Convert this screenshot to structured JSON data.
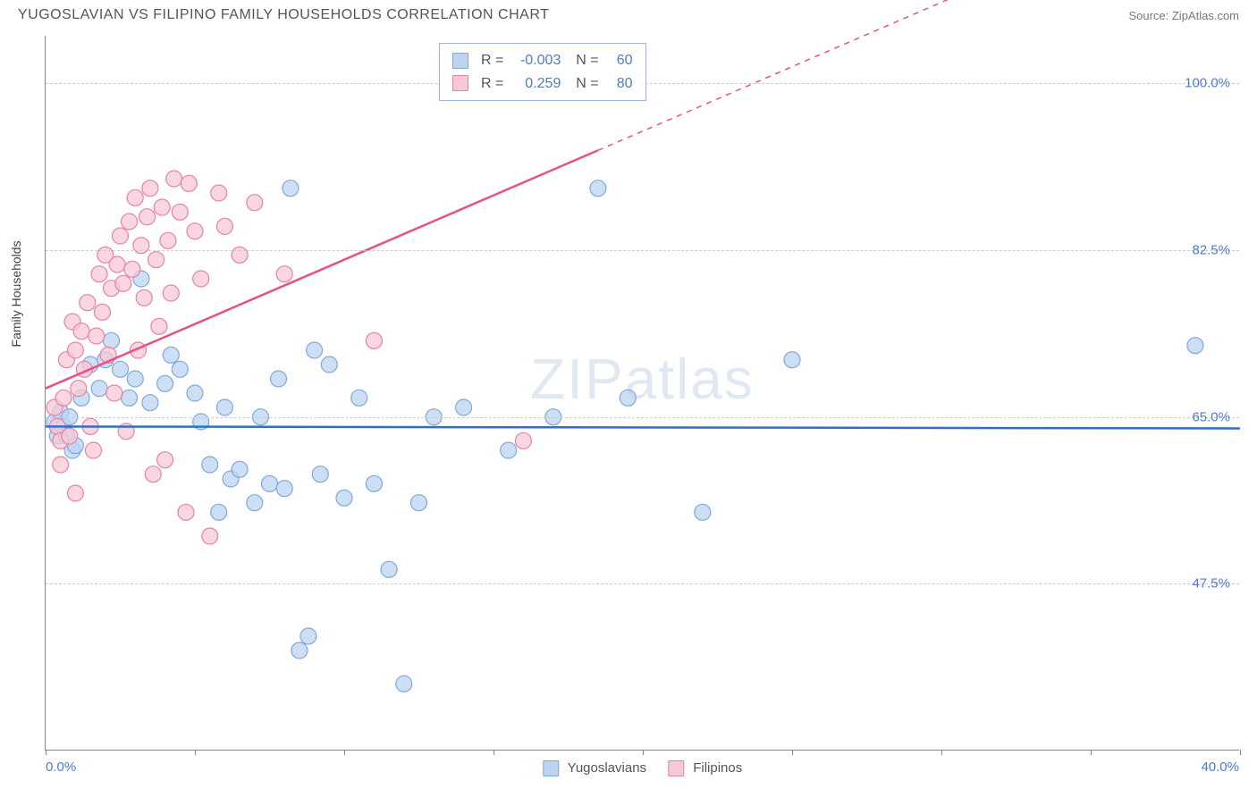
{
  "title": "YUGOSLAVIAN VS FILIPINO FAMILY HOUSEHOLDS CORRELATION CHART",
  "source": "Source: ZipAtlas.com",
  "watermark": "ZIPatlas",
  "y_axis_title": "Family Households",
  "chart": {
    "type": "scatter",
    "xlim": [
      0,
      40
    ],
    "ylim": [
      30,
      105
    ],
    "x_tick_step": 5,
    "x_labels": {
      "min": "0.0%",
      "max": "40.0%"
    },
    "y_ticks": [
      {
        "value": 47.5,
        "label": "47.5%"
      },
      {
        "value": 65.0,
        "label": "65.0%"
      },
      {
        "value": 82.5,
        "label": "82.5%"
      },
      {
        "value": 100.0,
        "label": "100.0%"
      }
    ],
    "background_color": "#ffffff",
    "grid_color": "#cccccc",
    "axis_color": "#888888",
    "series": [
      {
        "name": "Yugoslavians",
        "marker_color": "#bcd4f0",
        "marker_border": "#7ea8db",
        "marker_opacity": 0.75,
        "marker_radius": 9,
        "trend": {
          "slope": -0.005,
          "intercept": 64.0,
          "color": "#2f6dd0",
          "width": 2.5,
          "dash_after_x": 40
        },
        "R": "-0.003",
        "N": "60",
        "points": [
          [
            0.3,
            64.5
          ],
          [
            0.4,
            63.0
          ],
          [
            0.5,
            65.5
          ],
          [
            0.6,
            64.0
          ],
          [
            0.7,
            63.0
          ],
          [
            0.8,
            65.0
          ],
          [
            0.9,
            61.5
          ],
          [
            1.0,
            62.0
          ],
          [
            1.2,
            67.0
          ],
          [
            1.5,
            70.5
          ],
          [
            1.8,
            68.0
          ],
          [
            2.0,
            71.0
          ],
          [
            2.2,
            73.0
          ],
          [
            2.5,
            70.0
          ],
          [
            2.8,
            67.0
          ],
          [
            3.0,
            69.0
          ],
          [
            3.2,
            79.5
          ],
          [
            3.5,
            66.5
          ],
          [
            4.0,
            68.5
          ],
          [
            4.2,
            71.5
          ],
          [
            4.5,
            70.0
          ],
          [
            5.0,
            67.5
          ],
          [
            5.2,
            64.5
          ],
          [
            5.5,
            60.0
          ],
          [
            5.8,
            55.0
          ],
          [
            6.0,
            66.0
          ],
          [
            6.2,
            58.5
          ],
          [
            6.5,
            59.5
          ],
          [
            7.0,
            56.0
          ],
          [
            7.2,
            65.0
          ],
          [
            7.5,
            58.0
          ],
          [
            7.8,
            69.0
          ],
          [
            8.0,
            57.5
          ],
          [
            8.2,
            89.0
          ],
          [
            8.5,
            40.5
          ],
          [
            8.8,
            42.0
          ],
          [
            9.0,
            72.0
          ],
          [
            9.2,
            59.0
          ],
          [
            9.5,
            70.5
          ],
          [
            10.0,
            56.5
          ],
          [
            10.5,
            67.0
          ],
          [
            11.0,
            58.0
          ],
          [
            11.5,
            49.0
          ],
          [
            12.0,
            37.0
          ],
          [
            12.5,
            56.0
          ],
          [
            13.0,
            65.0
          ],
          [
            14.0,
            66.0
          ],
          [
            15.5,
            61.5
          ],
          [
            17.0,
            65.0
          ],
          [
            18.5,
            89.0
          ],
          [
            19.5,
            67.0
          ],
          [
            22.0,
            55.0
          ],
          [
            25.0,
            71.0
          ],
          [
            38.5,
            72.5
          ]
        ]
      },
      {
        "name": "Filipinos",
        "marker_color": "#f7c8d6",
        "marker_border": "#e682a5",
        "marker_opacity": 0.75,
        "marker_radius": 9,
        "trend": {
          "slope": 1.35,
          "intercept": 68.0,
          "color": "#e65189",
          "width": 2.5,
          "dash_after_x": 18.5
        },
        "R": "0.259",
        "N": "80",
        "points": [
          [
            0.3,
            66.0
          ],
          [
            0.4,
            64.0
          ],
          [
            0.5,
            62.5
          ],
          [
            0.6,
            67.0
          ],
          [
            0.7,
            71.0
          ],
          [
            0.8,
            63.0
          ],
          [
            0.9,
            75.0
          ],
          [
            1.0,
            72.0
          ],
          [
            1.1,
            68.0
          ],
          [
            1.2,
            74.0
          ],
          [
            1.3,
            70.0
          ],
          [
            1.4,
            77.0
          ],
          [
            1.5,
            64.0
          ],
          [
            1.6,
            61.5
          ],
          [
            1.7,
            73.5
          ],
          [
            1.8,
            80.0
          ],
          [
            1.9,
            76.0
          ],
          [
            2.0,
            82.0
          ],
          [
            2.1,
            71.5
          ],
          [
            2.2,
            78.5
          ],
          [
            2.3,
            67.5
          ],
          [
            2.4,
            81.0
          ],
          [
            2.5,
            84.0
          ],
          [
            2.6,
            79.0
          ],
          [
            2.7,
            63.5
          ],
          [
            2.8,
            85.5
          ],
          [
            2.9,
            80.5
          ],
          [
            3.0,
            88.0
          ],
          [
            3.1,
            72.0
          ],
          [
            3.2,
            83.0
          ],
          [
            3.3,
            77.5
          ],
          [
            3.4,
            86.0
          ],
          [
            3.5,
            89.0
          ],
          [
            3.6,
            59.0
          ],
          [
            3.7,
            81.5
          ],
          [
            3.8,
            74.5
          ],
          [
            3.9,
            87.0
          ],
          [
            4.0,
            60.5
          ],
          [
            4.1,
            83.5
          ],
          [
            4.2,
            78.0
          ],
          [
            4.3,
            90.0
          ],
          [
            4.5,
            86.5
          ],
          [
            4.7,
            55.0
          ],
          [
            4.8,
            89.5
          ],
          [
            5.0,
            84.5
          ],
          [
            5.2,
            79.5
          ],
          [
            5.5,
            52.5
          ],
          [
            5.8,
            88.5
          ],
          [
            6.0,
            85.0
          ],
          [
            6.5,
            82.0
          ],
          [
            7.0,
            87.5
          ],
          [
            8.0,
            80.0
          ],
          [
            11.0,
            73.0
          ],
          [
            16.0,
            62.5
          ],
          [
            1.0,
            57.0
          ],
          [
            0.5,
            60.0
          ]
        ]
      }
    ]
  },
  "bottom_legend": [
    {
      "label": "Yugoslavians",
      "fill": "#bcd4f0",
      "border": "#7ea8db"
    },
    {
      "label": "Filipinos",
      "fill": "#f7c8d6",
      "border": "#e682a5"
    }
  ]
}
